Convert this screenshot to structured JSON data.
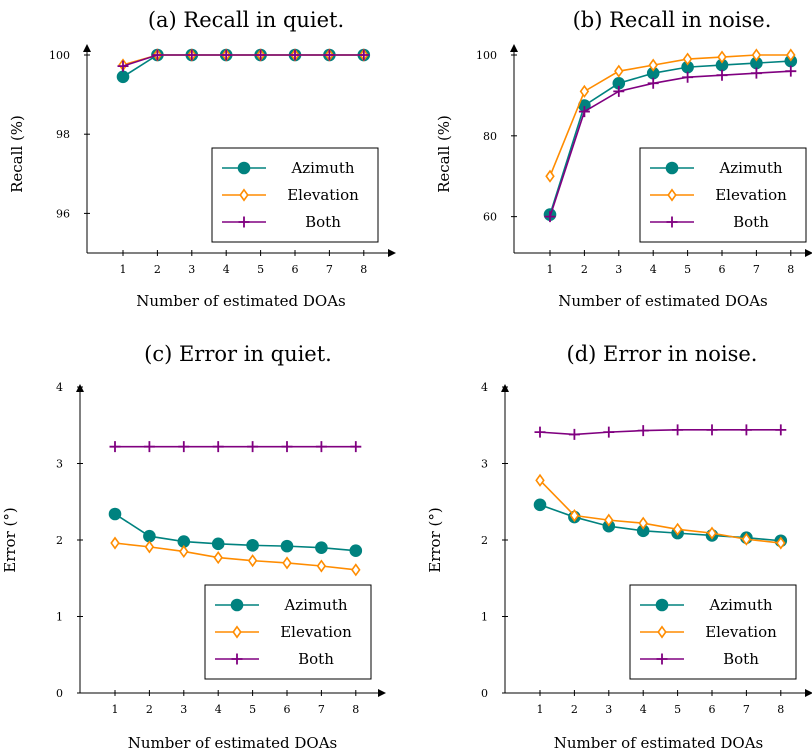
{
  "colors": {
    "azimuth": "#00827f",
    "elevation": "#ff8c00",
    "both": "#800080"
  },
  "chart_data": [
    {
      "type": "line",
      "title": "(a) Recall in quiet.",
      "xlabel": "Number of estimated DOAs",
      "ylabel": "Recall (%)",
      "x": [
        1,
        2,
        3,
        4,
        5,
        6,
        7,
        8
      ],
      "ylim": [
        95,
        100
      ],
      "yticks": [
        96,
        98,
        100
      ],
      "series": [
        {
          "name": "Azimuth",
          "values": [
            99.45,
            100,
            100,
            100,
            100,
            100,
            100,
            100
          ]
        },
        {
          "name": "Elevation",
          "values": [
            99.75,
            100,
            100,
            100,
            100,
            100,
            100,
            100
          ]
        },
        {
          "name": "Both",
          "values": [
            99.72,
            100,
            100,
            100,
            100,
            100,
            100,
            100
          ]
        }
      ],
      "legend": "bottom-right",
      "grid": false
    },
    {
      "type": "line",
      "title": "(b) Recall in noise.",
      "xlabel": "Number of estimated DOAs",
      "ylabel": "Recall (%)",
      "x": [
        1,
        2,
        3,
        4,
        5,
        6,
        7,
        8
      ],
      "ylim": [
        51,
        100
      ],
      "yticks": [
        60,
        80,
        100
      ],
      "series": [
        {
          "name": "Azimuth",
          "values": [
            60.5,
            87.5,
            93,
            95.5,
            97,
            97.5,
            98,
            98.5
          ]
        },
        {
          "name": "Elevation",
          "values": [
            70,
            91,
            96,
            97.5,
            99,
            99.5,
            100,
            100
          ]
        },
        {
          "name": "Both",
          "values": [
            60,
            86,
            91,
            93,
            94.5,
            95,
            95.5,
            96
          ]
        }
      ],
      "legend": "bottom-right",
      "grid": false
    },
    {
      "type": "line",
      "title": "(c) Error in quiet.",
      "xlabel": "Number of estimated DOAs",
      "ylabel": "Error (°)",
      "x": [
        1,
        2,
        3,
        4,
        5,
        6,
        7,
        8
      ],
      "ylim": [
        0,
        4
      ],
      "yticks": [
        0,
        1,
        2,
        3,
        4
      ],
      "series": [
        {
          "name": "Azimuth",
          "values": [
            2.34,
            2.05,
            1.98,
            1.95,
            1.93,
            1.92,
            1.9,
            1.86
          ]
        },
        {
          "name": "Elevation",
          "values": [
            1.96,
            1.91,
            1.85,
            1.77,
            1.73,
            1.7,
            1.66,
            1.61
          ]
        },
        {
          "name": "Both",
          "values": [
            3.22,
            3.22,
            3.22,
            3.22,
            3.22,
            3.22,
            3.22,
            3.22
          ]
        }
      ],
      "legend": "bottom-right",
      "grid": false
    },
    {
      "type": "line",
      "title": "(d) Error in noise.",
      "xlabel": "Number of estimated DOAs",
      "ylabel": "Error (°)",
      "x": [
        1,
        2,
        3,
        4,
        5,
        6,
        7,
        8
      ],
      "ylim": [
        0,
        4
      ],
      "yticks": [
        0,
        1,
        2,
        3,
        4
      ],
      "series": [
        {
          "name": "Azimuth",
          "values": [
            2.46,
            2.3,
            2.18,
            2.12,
            2.09,
            2.06,
            2.03,
            1.99
          ]
        },
        {
          "name": "Elevation",
          "values": [
            2.78,
            2.32,
            2.26,
            2.22,
            2.14,
            2.09,
            2.01,
            1.96
          ]
        },
        {
          "name": "Both",
          "values": [
            3.41,
            3.38,
            3.41,
            3.43,
            3.44,
            3.44,
            3.44,
            3.44
          ]
        }
      ],
      "legend": "bottom-right",
      "grid": false
    }
  ]
}
